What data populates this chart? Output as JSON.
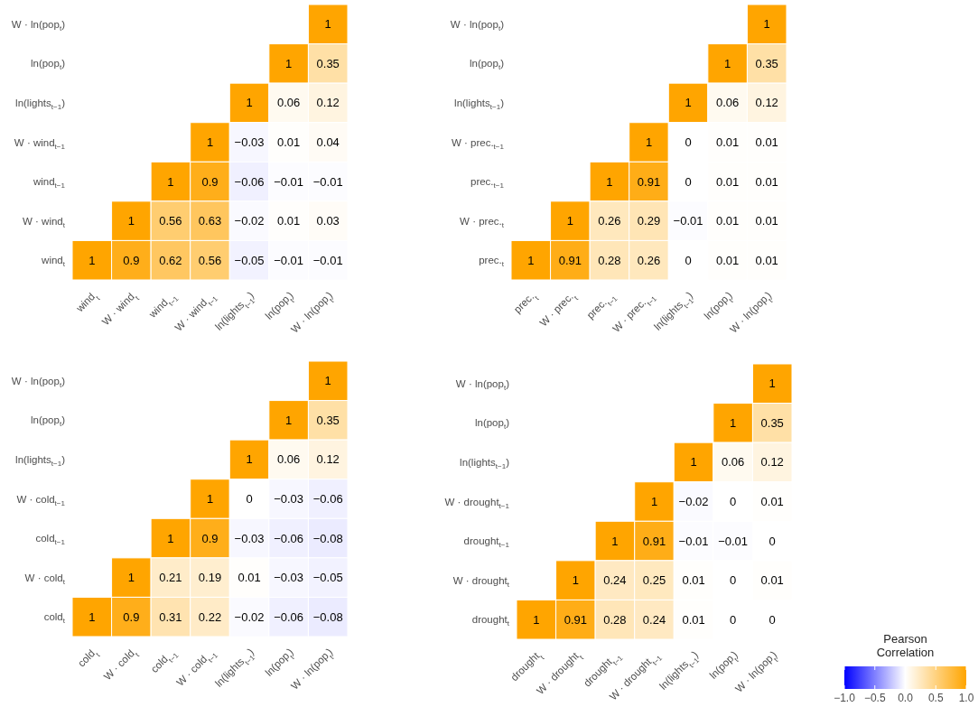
{
  "chart_data": [
    {
      "type": "heatmap",
      "data_labels": true,
      "categories": [
        "wind$_{t}$",
        "W · wind$_{t}$",
        "wind$_{t−1}$",
        "W · wind$_{t−1}$",
        "ln(lights$_{t−1}$)",
        "ln(pop$_{t}$)",
        "W · ln(pop$_{t}$)"
      ],
      "y_categories": [
        "W · ln(pop$_{t}$)",
        "ln(pop$_{t}$)",
        "ln(lights$_{t−1}$)",
        "W · wind$_{t−1}$",
        "wind$_{t−1}$",
        "W · wind$_{t}$",
        "wind$_{t}$"
      ],
      "cells": [
        [
          null,
          null,
          null,
          null,
          null,
          null,
          1
        ],
        [
          null,
          null,
          null,
          null,
          null,
          1,
          0.35
        ],
        [
          null,
          null,
          null,
          null,
          1,
          0.06,
          0.12
        ],
        [
          null,
          null,
          null,
          1,
          -0.03,
          0.01,
          0.04
        ],
        [
          null,
          null,
          1,
          0.9,
          -0.06,
          -0.01,
          -0.01
        ],
        [
          null,
          1,
          0.56,
          0.63,
          -0.02,
          0.01,
          0.03
        ],
        [
          1,
          0.9,
          0.62,
          0.56,
          -0.05,
          -0.01,
          -0.01
        ]
      ]
    },
    {
      "type": "heatmap",
      "data_labels": true,
      "categories": [
        "prec.$_{t}$",
        "W · prec.$_{t}$",
        "prec.$_{t−1}$",
        "W · prec.$_{t−1}$",
        "ln(lights$_{t−1}$)",
        "ln(pop$_{t}$)",
        "W · ln(pop$_{t}$)"
      ],
      "y_categories": [
        "W · ln(pop$_{t}$)",
        "ln(pop$_{t}$)",
        "ln(lights$_{t−1}$)",
        "W · prec.$_{t−1}$",
        "prec.$_{t−1}$",
        "W · prec.$_{t}$",
        "prec.$_{t}$"
      ],
      "cells": [
        [
          null,
          null,
          null,
          null,
          null,
          null,
          1
        ],
        [
          null,
          null,
          null,
          null,
          null,
          1,
          0.35
        ],
        [
          null,
          null,
          null,
          null,
          1,
          0.06,
          0.12
        ],
        [
          null,
          null,
          null,
          1,
          0,
          0.01,
          0.01
        ],
        [
          null,
          null,
          1,
          0.91,
          0,
          0.01,
          0.01
        ],
        [
          null,
          1,
          0.26,
          0.29,
          -0.01,
          0.01,
          0.01
        ],
        [
          1,
          0.91,
          0.28,
          0.26,
          0,
          0.01,
          0.01
        ]
      ]
    },
    {
      "type": "heatmap",
      "data_labels": true,
      "categories": [
        "cold$_{t}$",
        "W · cold$_{t}$",
        "cold$_{t−1}$",
        "W · cold$_{t−1}$",
        "ln(lights$_{t−1}$)",
        "ln(pop$_{t}$)",
        "W · ln(pop$_{t}$)"
      ],
      "y_categories": [
        "W · ln(pop$_{t}$)",
        "ln(pop$_{t}$)",
        "ln(lights$_{t−1}$)",
        "W · cold$_{t−1}$",
        "cold$_{t−1}$",
        "W · cold$_{t}$",
        "cold$_{t}$"
      ],
      "cells": [
        [
          null,
          null,
          null,
          null,
          null,
          null,
          1
        ],
        [
          null,
          null,
          null,
          null,
          null,
          1,
          0.35
        ],
        [
          null,
          null,
          null,
          null,
          1,
          0.06,
          0.12
        ],
        [
          null,
          null,
          null,
          1,
          0,
          -0.03,
          -0.06
        ],
        [
          null,
          null,
          1,
          0.9,
          -0.03,
          -0.06,
          -0.08
        ],
        [
          null,
          1,
          0.21,
          0.19,
          0.01,
          -0.03,
          -0.05
        ],
        [
          1,
          0.9,
          0.31,
          0.22,
          -0.02,
          -0.06,
          -0.08
        ]
      ]
    },
    {
      "type": "heatmap",
      "data_labels": true,
      "clim": [
        -1,
        1
      ],
      "clabel": "Pearson\nCorrelation",
      "cticks": [
        {
          "value": -1,
          "label": "−1.0"
        },
        {
          "value": -0.5,
          "label": "−0.5"
        },
        {
          "value": 0,
          "label": "0.0"
        },
        {
          "value": 0.5,
          "label": "0.5"
        },
        {
          "value": 1,
          "label": "1.0"
        }
      ],
      "categories": [
        "drought$_{t}$",
        "W · drought$_{t}$",
        "drought$_{t−1}$",
        "W · drought$_{t−1}$",
        "ln(lights$_{t−1}$)",
        "ln(pop$_{t}$)",
        "W · ln(pop$_{t}$)"
      ],
      "y_categories": [
        "W · ln(pop$_{t}$)",
        "ln(pop$_{t}$)",
        "ln(lights$_{t−1}$)",
        "W · drought$_{t−1}$",
        "drought$_{t−1}$",
        "W · drought$_{t}$",
        "drought$_{t}$"
      ],
      "cells": [
        [
          null,
          null,
          null,
          null,
          null,
          null,
          1
        ],
        [
          null,
          null,
          null,
          null,
          null,
          1,
          0.35
        ],
        [
          null,
          null,
          null,
          null,
          1,
          0.06,
          0.12
        ],
        [
          null,
          null,
          null,
          1,
          -0.02,
          0,
          0.01
        ],
        [
          null,
          null,
          1,
          0.91,
          -0.01,
          -0.01,
          0
        ],
        [
          null,
          1,
          0.24,
          0.25,
          0.01,
          0,
          0.01
        ],
        [
          1,
          0.91,
          0.28,
          0.24,
          0.01,
          0,
          0
        ]
      ]
    }
  ]
}
